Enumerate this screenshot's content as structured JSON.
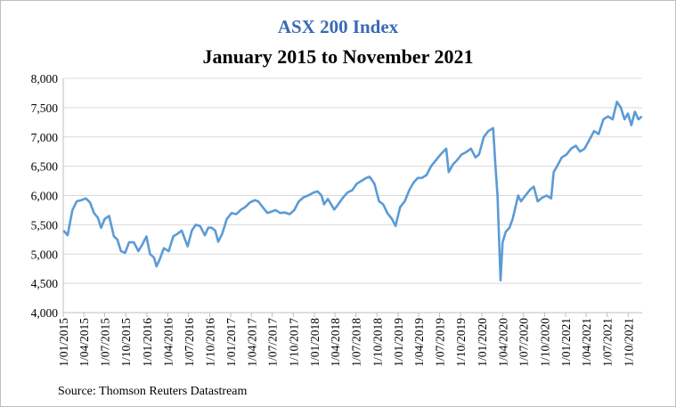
{
  "chart_data": {
    "type": "line",
    "title": "ASX 200 Index",
    "subtitle": "January 2015 to November 2021",
    "source": "Source: Thomson Reuters Datastream",
    "xlabel": "",
    "ylabel": "",
    "ylim": [
      4000,
      8000
    ],
    "y_ticks": [
      "4,000",
      "4,500",
      "5,000",
      "5,500",
      "6,000",
      "6,500",
      "7,000",
      "7,500",
      "8,000"
    ],
    "x_ticks": [
      "1/01/2015",
      "1/04/2015",
      "1/07/2015",
      "1/10/2015",
      "1/01/2016",
      "1/04/2016",
      "1/07/2016",
      "1/10/2016",
      "1/01/2017",
      "1/04/2017",
      "1/07/2017",
      "1/10/2017",
      "1/01/2018",
      "1/04/2018",
      "1/07/2018",
      "1/10/2018",
      "1/01/2019",
      "1/04/2019",
      "1/07/2019",
      "1/10/2019",
      "1/01/2020",
      "1/04/2020",
      "1/07/2020",
      "1/10/2020",
      "1/01/2021",
      "1/04/2021",
      "1/07/2021",
      "1/10/2021"
    ],
    "grid": true,
    "line_color": "#5b9bd5",
    "series": [
      {
        "x": [
          "2015-01-02",
          "2015-01-20",
          "2015-02-10",
          "2015-03-01",
          "2015-03-20",
          "2015-04-10",
          "2015-04-28",
          "2015-05-15",
          "2015-06-01",
          "2015-06-15",
          "2015-07-01",
          "2015-07-20",
          "2015-08-10",
          "2015-08-25",
          "2015-09-10",
          "2015-09-28",
          "2015-10-15",
          "2015-11-05",
          "2015-11-25",
          "2015-12-10",
          "2015-12-30",
          "2016-01-15",
          "2016-02-01",
          "2016-02-12",
          "2016-02-25",
          "2016-03-15",
          "2016-04-05",
          "2016-04-25",
          "2016-05-15",
          "2016-06-01",
          "2016-06-27",
          "2016-07-15",
          "2016-08-01",
          "2016-08-20",
          "2016-09-10",
          "2016-09-25",
          "2016-10-10",
          "2016-10-25",
          "2016-11-07",
          "2016-11-25",
          "2016-12-15",
          "2017-01-05",
          "2017-01-25",
          "2017-02-15",
          "2017-03-05",
          "2017-03-25",
          "2017-04-15",
          "2017-05-01",
          "2017-05-20",
          "2017-06-10",
          "2017-06-25",
          "2017-07-15",
          "2017-08-05",
          "2017-08-25",
          "2017-09-15",
          "2017-10-05",
          "2017-10-25",
          "2017-11-15",
          "2017-12-05",
          "2017-12-28",
          "2018-01-15",
          "2018-02-01",
          "2018-02-12",
          "2018-03-01",
          "2018-03-28",
          "2018-04-15",
          "2018-05-05",
          "2018-05-25",
          "2018-06-15",
          "2018-07-05",
          "2018-07-25",
          "2018-08-15",
          "2018-08-30",
          "2018-09-20",
          "2018-10-10",
          "2018-10-28",
          "2018-11-15",
          "2018-12-05",
          "2018-12-21",
          "2019-01-10",
          "2019-01-30",
          "2019-02-20",
          "2019-03-10",
          "2019-03-28",
          "2019-04-15",
          "2019-05-05",
          "2019-05-25",
          "2019-06-15",
          "2019-07-05",
          "2019-07-30",
          "2019-08-10",
          "2019-08-28",
          "2019-09-15",
          "2019-10-05",
          "2019-10-25",
          "2019-11-15",
          "2019-12-05",
          "2019-12-20",
          "2020-01-10",
          "2020-01-30",
          "2020-02-20",
          "2020-03-01",
          "2020-03-10",
          "2020-03-23",
          "2020-04-01",
          "2020-04-15",
          "2020-05-01",
          "2020-05-15",
          "2020-06-08",
          "2020-06-20",
          "2020-07-10",
          "2020-07-30",
          "2020-08-15",
          "2020-09-01",
          "2020-09-20",
          "2020-10-10",
          "2020-10-30",
          "2020-11-10",
          "2020-11-25",
          "2020-12-15",
          "2021-01-05",
          "2021-01-25",
          "2021-02-15",
          "2021-03-05",
          "2021-03-25",
          "2021-04-15",
          "2021-05-05",
          "2021-05-25",
          "2021-06-15",
          "2021-07-05",
          "2021-07-25",
          "2021-08-13",
          "2021-08-30",
          "2021-09-15",
          "2021-09-30",
          "2021-10-15",
          "2021-10-30",
          "2021-11-15",
          "2021-11-30"
        ],
        "y": [
          5400,
          5320,
          5750,
          5900,
          5920,
          5950,
          5880,
          5700,
          5620,
          5450,
          5600,
          5650,
          5300,
          5250,
          5050,
          5020,
          5200,
          5200,
          5050,
          5150,
          5300,
          5000,
          4940,
          4790,
          4900,
          5100,
          5050,
          5300,
          5350,
          5400,
          5130,
          5400,
          5500,
          5480,
          5320,
          5450,
          5450,
          5400,
          5210,
          5350,
          5600,
          5700,
          5680,
          5760,
          5800,
          5880,
          5920,
          5900,
          5800,
          5700,
          5720,
          5750,
          5700,
          5710,
          5680,
          5750,
          5900,
          5970,
          6000,
          6050,
          6070,
          6000,
          5850,
          5940,
          5760,
          5850,
          5960,
          6050,
          6090,
          6200,
          6250,
          6300,
          6320,
          6200,
          5900,
          5850,
          5700,
          5600,
          5480,
          5800,
          5900,
          6100,
          6220,
          6300,
          6300,
          6350,
          6500,
          6600,
          6700,
          6800,
          6400,
          6530,
          6600,
          6700,
          6740,
          6800,
          6650,
          6700,
          7000,
          7100,
          7150,
          6500,
          6000,
          4550,
          5200,
          5380,
          5450,
          5600,
          6000,
          5900,
          6000,
          6100,
          6150,
          5900,
          5960,
          6000,
          5950,
          6400,
          6500,
          6650,
          6700,
          6800,
          6850,
          6750,
          6800,
          6950,
          7100,
          7050,
          7300,
          7350,
          7300,
          7600,
          7500,
          7300,
          7400,
          7200,
          7430,
          7300,
          7350
        ]
      }
    ]
  }
}
